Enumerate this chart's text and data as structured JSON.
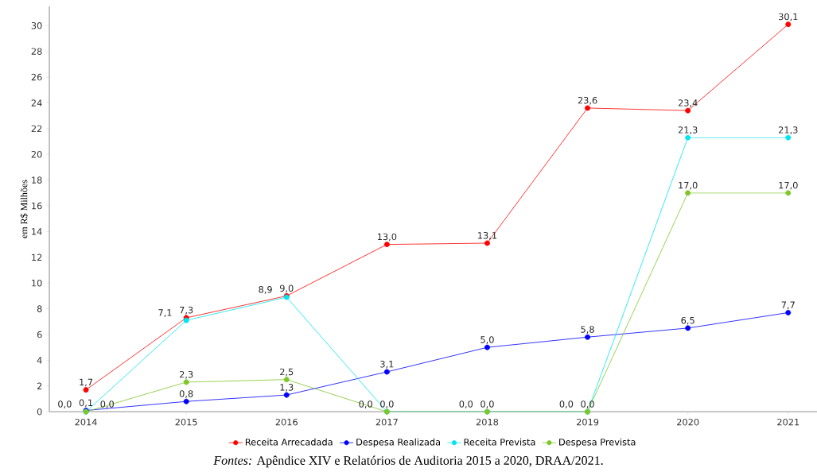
{
  "chart_data": {
    "type": "line",
    "ylabel": "em R$ Milhões",
    "categories": [
      "2014",
      "2015",
      "2016",
      "2017",
      "2018",
      "2019",
      "2020",
      "2021"
    ],
    "series": [
      {
        "name": "Receita Arrecadada",
        "color": "#ff0000",
        "values": [
          1.7,
          7.3,
          9.0,
          13.0,
          13.1,
          23.6,
          23.4,
          30.1
        ],
        "value_labels": [
          "1,7",
          "7,3",
          "9,0",
          "13,0",
          "13,1",
          "23,6",
          "23,4",
          "30,1"
        ]
      },
      {
        "name": "Despesa Realizada",
        "color": "#0000ff",
        "values": [
          0.1,
          0.8,
          1.3,
          3.1,
          5.0,
          5.8,
          6.5,
          7.7
        ],
        "value_labels": [
          "0,1",
          "0,8",
          "1,3",
          "3,1",
          "5,0",
          "5,8",
          "6,5",
          "7,7"
        ]
      },
      {
        "name": "Receita Prevista",
        "color": "#00e5ee",
        "values": [
          0.0,
          7.1,
          8.9,
          0.0,
          0.0,
          0.0,
          21.3,
          21.3
        ],
        "value_labels": [
          "0,0",
          "7,1",
          "8,9",
          "0,0",
          "0,0",
          "0,0",
          "21,3",
          "21,3"
        ]
      },
      {
        "name": "Despesa Prevista",
        "color": "#7ec629",
        "values": [
          0.0,
          2.3,
          2.5,
          0.0,
          0.0,
          0.0,
          17.0,
          17.0
        ],
        "value_labels": [
          "0,0",
          "2,3",
          "2,5",
          "0,0",
          "0,0",
          "0,0",
          "17,0",
          "17,0"
        ]
      }
    ],
    "ylim": [
      0,
      31.5
    ],
    "yticks": [
      0,
      2,
      4,
      6,
      8,
      10,
      12,
      14,
      16,
      18,
      20,
      22,
      24,
      26,
      28,
      30
    ],
    "grid": false,
    "legend": "bottom",
    "marker": "circle",
    "line_style": "solid",
    "annotations": [
      "*Fontes:* Apêndice XIV e Relatórios de Auditoria 2015 a 2020, DRAA/2021."
    ]
  }
}
